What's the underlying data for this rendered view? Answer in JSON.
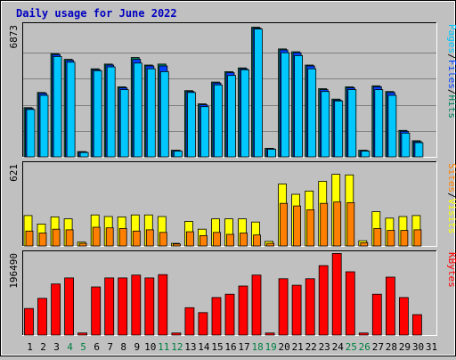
{
  "title": "Daily usage for June 2022",
  "colors": {
    "background": "#c0c0c0",
    "plot_bg": "#c0c0c0",
    "grid": "#808080",
    "hits": "#00805c",
    "files": "#0040ff",
    "pages": "#00c8ff",
    "visits": "#ff8000",
    "sites": "#ffff00",
    "kbytes": "#ff0000",
    "title": "#0000c0",
    "weekend": "#008040",
    "weekday": "#000000"
  },
  "chart_data": [
    {
      "type": "bar",
      "panel": "hits-files-pages",
      "y_top_label": "6873",
      "ylim": [
        0,
        6873
      ],
      "legend": [
        {
          "label": "Pages",
          "color": "#00c8ff"
        },
        {
          "label": "Files",
          "color": "#0040ff"
        },
        {
          "label": "Hits",
          "color": "#00805c"
        }
      ],
      "categories": [
        "1",
        "2",
        "3",
        "4",
        "5",
        "6",
        "7",
        "8",
        "9",
        "10",
        "11",
        "12",
        "13",
        "14",
        "15",
        "16",
        "17",
        "18",
        "19",
        "20",
        "21",
        "22",
        "23",
        "24",
        "25",
        "26",
        "27",
        "28",
        "29",
        "30",
        "31"
      ],
      "series": [
        {
          "name": "Hits",
          "values": [
            2600,
            3400,
            5450,
            5150,
            280,
            4650,
            4900,
            3700,
            5250,
            4850,
            4900,
            350,
            3500,
            2800,
            3950,
            4500,
            4700,
            6850,
            450,
            5700,
            5550,
            4850,
            3600,
            3050,
            3700,
            350,
            3750,
            3450,
            1400,
            850,
            0
          ]
        },
        {
          "name": "Files",
          "values": [
            2550,
            3350,
            5400,
            5100,
            260,
            4600,
            4850,
            3650,
            5150,
            4800,
            4800,
            330,
            3450,
            2750,
            3900,
            4450,
            4650,
            6800,
            430,
            5650,
            5500,
            4800,
            3550,
            3000,
            3650,
            330,
            3700,
            3400,
            1350,
            800,
            0
          ]
        },
        {
          "name": "Pages",
          "values": [
            2500,
            3250,
            5300,
            5000,
            230,
            4550,
            4750,
            3550,
            4950,
            4650,
            4500,
            300,
            3400,
            2650,
            3800,
            4300,
            4600,
            6750,
            400,
            5500,
            5350,
            4650,
            3450,
            2950,
            3550,
            300,
            3550,
            3250,
            1250,
            750,
            0
          ]
        }
      ]
    },
    {
      "type": "bar",
      "panel": "visits-sites",
      "y_top_label": "621",
      "ylim": [
        0,
        621
      ],
      "legend": [
        {
          "label": "Sites",
          "color": "#ff8000"
        },
        {
          "label": "Visits",
          "color": "#ffff00"
        }
      ],
      "categories": [
        "1",
        "2",
        "3",
        "4",
        "5",
        "6",
        "7",
        "8",
        "9",
        "10",
        "11",
        "12",
        "13",
        "14",
        "15",
        "16",
        "17",
        "18",
        "19",
        "20",
        "21",
        "22",
        "23",
        "24",
        "25",
        "26",
        "27",
        "28",
        "29",
        "30",
        "31"
      ],
      "series": [
        {
          "name": "Visits",
          "values": [
            235,
            170,
            225,
            210,
            30,
            240,
            228,
            225,
            240,
            240,
            228,
            20,
            190,
            130,
            210,
            210,
            210,
            185,
            35,
            480,
            400,
            425,
            500,
            555,
            550,
            40,
            265,
            215,
            228,
            235,
            0
          ]
        },
        {
          "name": "Sites",
          "values": [
            115,
            100,
            130,
            125,
            20,
            145,
            140,
            135,
            115,
            125,
            105,
            15,
            110,
            80,
            105,
            90,
            100,
            85,
            20,
            330,
            310,
            280,
            330,
            340,
            335,
            25,
            135,
            120,
            120,
            125,
            0
          ]
        }
      ]
    },
    {
      "type": "bar",
      "panel": "kbytes",
      "y_top_label": "196490",
      "ylim": [
        0,
        196490
      ],
      "legend": [
        {
          "label": "KBytes",
          "color": "#ff0000"
        }
      ],
      "categories": [
        "1",
        "2",
        "3",
        "4",
        "5",
        "6",
        "7",
        "8",
        "9",
        "10",
        "11",
        "12",
        "13",
        "14",
        "15",
        "16",
        "17",
        "18",
        "19",
        "20",
        "21",
        "22",
        "23",
        "24",
        "25",
        "26",
        "27",
        "28",
        "29",
        "30",
        "31"
      ],
      "series": [
        {
          "name": "KBytes",
          "values": [
            65000,
            90000,
            125000,
            140000,
            5000,
            118000,
            140000,
            140000,
            147000,
            140000,
            148000,
            5000,
            67000,
            55000,
            92000,
            100000,
            120000,
            147000,
            5000,
            138000,
            122000,
            138000,
            170000,
            200000,
            155000,
            5000,
            100000,
            142000,
            92000,
            50000,
            0
          ]
        }
      ]
    }
  ],
  "x_labels": [
    "1",
    "2",
    "3",
    "4",
    "5",
    "6",
    "7",
    "8",
    "9",
    "10",
    "11",
    "12",
    "13",
    "14",
    "15",
    "16",
    "17",
    "18",
    "19",
    "20",
    "21",
    "22",
    "23",
    "24",
    "25",
    "26",
    "27",
    "28",
    "29",
    "30",
    "31"
  ],
  "weekend_days": [
    "4",
    "5",
    "11",
    "12",
    "18",
    "19",
    "25",
    "26"
  ]
}
